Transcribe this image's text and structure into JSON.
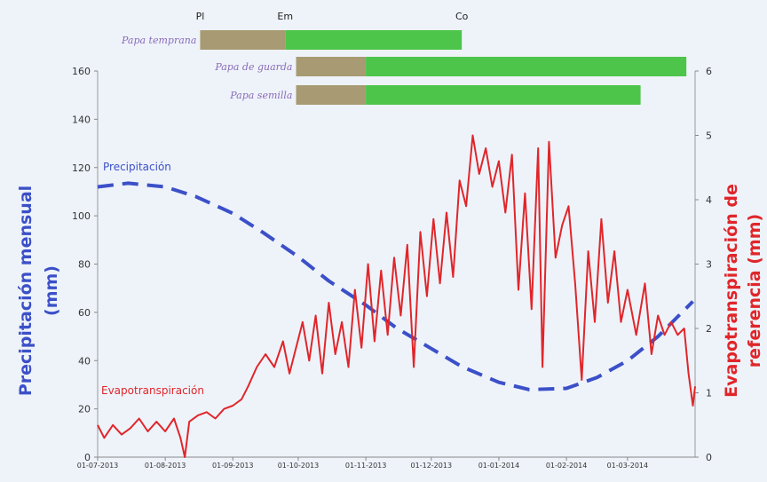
{
  "chart_data": {
    "type": "line",
    "x_ticks": [
      "01-07-2013",
      "01-08-2013",
      "01-09-2013",
      "01-10-2013",
      "01-11-2013",
      "01-12-2013",
      "01-01-2014",
      "01-02-2014",
      "01-03-2014"
    ],
    "y_left": {
      "label": "Precipitación mensual (mm)",
      "ticks": [
        "0",
        "20",
        "40",
        "60",
        "80",
        "100",
        "120",
        "140",
        "160"
      ],
      "range": [
        0,
        160
      ]
    },
    "y_right": {
      "label": "Evapotranspiración de referencia (mm)",
      "ticks": [
        "0",
        "1",
        "2",
        "3",
        "4",
        "5",
        "6"
      ],
      "range": [
        0,
        6
      ]
    },
    "crop_stages": [
      "Pl",
      "Em",
      "Co"
    ],
    "crops": [
      {
        "name": "Papa temprana",
        "planting": "2013-08-17",
        "emergence": "2013-09-25",
        "end": "2013-12-15"
      },
      {
        "name": "Papa de guarda",
        "planting": "2013-09-30",
        "emergence": "2013-11-01",
        "end": "2014-03-28"
      },
      {
        "name": "Papa semilla",
        "planting": "2013-09-30",
        "emergence": "2013-11-01",
        "end": "2014-03-07"
      }
    ],
    "series": [
      {
        "name": "Precipitación",
        "axis": "left",
        "style": "dashed",
        "color": "#3b50c8",
        "points": [
          [
            "2013-07-01",
            112
          ],
          [
            "2013-07-15",
            113.5
          ],
          [
            "2013-08-01",
            112
          ],
          [
            "2013-08-15",
            108
          ],
          [
            "2013-09-01",
            101
          ],
          [
            "2013-09-15",
            93
          ],
          [
            "2013-10-01",
            83
          ],
          [
            "2013-10-15",
            73
          ],
          [
            "2013-11-01",
            63
          ],
          [
            "2013-11-15",
            53.5
          ],
          [
            "2013-12-01",
            45
          ],
          [
            "2013-12-15",
            37.5
          ],
          [
            "2014-01-01",
            31
          ],
          [
            "2014-01-15",
            28
          ],
          [
            "2014-02-01",
            28.5
          ],
          [
            "2014-02-15",
            33
          ],
          [
            "2014-03-01",
            40
          ],
          [
            "2014-03-15",
            50
          ],
          [
            "2014-03-31",
            64.5
          ]
        ]
      },
      {
        "name": "Evapotranspiración",
        "axis": "right",
        "style": "solid",
        "color": "#e0262a",
        "points": [
          [
            "2013-07-01",
            0.5
          ],
          [
            "2013-07-04",
            0.3
          ],
          [
            "2013-07-08",
            0.5
          ],
          [
            "2013-07-12",
            0.35
          ],
          [
            "2013-07-16",
            0.45
          ],
          [
            "2013-07-20",
            0.6
          ],
          [
            "2013-07-24",
            0.4
          ],
          [
            "2013-07-28",
            0.55
          ],
          [
            "2013-08-01",
            0.4
          ],
          [
            "2013-08-05",
            0.6
          ],
          [
            "2013-08-08",
            0.3
          ],
          [
            "2013-08-10",
            0.0
          ],
          [
            "2013-08-12",
            0.55
          ],
          [
            "2013-08-16",
            0.65
          ],
          [
            "2013-08-20",
            0.7
          ],
          [
            "2013-08-24",
            0.6
          ],
          [
            "2013-08-28",
            0.75
          ],
          [
            "2013-09-01",
            0.8
          ],
          [
            "2013-09-05",
            0.9
          ],
          [
            "2013-09-08",
            1.1
          ],
          [
            "2013-09-12",
            1.4
          ],
          [
            "2013-09-16",
            1.6
          ],
          [
            "2013-09-20",
            1.4
          ],
          [
            "2013-09-24",
            1.8
          ],
          [
            "2013-09-27",
            1.3
          ],
          [
            "2013-09-30",
            1.7
          ],
          [
            "2013-10-03",
            2.1
          ],
          [
            "2013-10-06",
            1.5
          ],
          [
            "2013-10-09",
            2.2
          ],
          [
            "2013-10-12",
            1.3
          ],
          [
            "2013-10-15",
            2.4
          ],
          [
            "2013-10-18",
            1.6
          ],
          [
            "2013-10-21",
            2.1
          ],
          [
            "2013-10-24",
            1.4
          ],
          [
            "2013-10-27",
            2.6
          ],
          [
            "2013-10-30",
            1.7
          ],
          [
            "2013-11-02",
            3.0
          ],
          [
            "2013-11-05",
            1.8
          ],
          [
            "2013-11-08",
            2.9
          ],
          [
            "2013-11-11",
            1.9
          ],
          [
            "2013-11-14",
            3.1
          ],
          [
            "2013-11-17",
            2.2
          ],
          [
            "2013-11-20",
            3.3
          ],
          [
            "2013-11-23",
            1.4
          ],
          [
            "2013-11-26",
            3.5
          ],
          [
            "2013-11-29",
            2.5
          ],
          [
            "2013-12-02",
            3.7
          ],
          [
            "2013-12-05",
            2.7
          ],
          [
            "2013-12-08",
            3.8
          ],
          [
            "2013-12-11",
            2.8
          ],
          [
            "2013-12-14",
            4.3
          ],
          [
            "2013-12-17",
            3.9
          ],
          [
            "2013-12-20",
            5.0
          ],
          [
            "2013-12-23",
            4.4
          ],
          [
            "2013-12-26",
            4.8
          ],
          [
            "2013-12-29",
            4.2
          ],
          [
            "2014-01-01",
            4.6
          ],
          [
            "2014-01-04",
            3.8
          ],
          [
            "2014-01-07",
            4.7
          ],
          [
            "2014-01-10",
            2.6
          ],
          [
            "2014-01-13",
            4.1
          ],
          [
            "2014-01-16",
            2.3
          ],
          [
            "2014-01-19",
            4.8
          ],
          [
            "2014-01-21",
            1.4
          ],
          [
            "2014-01-24",
            4.9
          ],
          [
            "2014-01-27",
            3.1
          ],
          [
            "2014-01-30",
            3.6
          ],
          [
            "2014-02-02",
            3.9
          ],
          [
            "2014-02-05",
            2.7
          ],
          [
            "2014-02-08",
            1.2
          ],
          [
            "2014-02-11",
            3.2
          ],
          [
            "2014-02-14",
            2.1
          ],
          [
            "2014-02-17",
            3.7
          ],
          [
            "2014-02-20",
            2.4
          ],
          [
            "2014-02-23",
            3.2
          ],
          [
            "2014-02-26",
            2.1
          ],
          [
            "2014-03-01",
            2.6
          ],
          [
            "2014-03-05",
            1.9
          ],
          [
            "2014-03-09",
            2.7
          ],
          [
            "2014-03-12",
            1.6
          ],
          [
            "2014-03-15",
            2.2
          ],
          [
            "2014-03-18",
            1.9
          ],
          [
            "2014-03-21",
            2.1
          ],
          [
            "2014-03-24",
            1.9
          ],
          [
            "2014-03-27",
            2.0
          ],
          [
            "2014-03-29",
            1.3
          ],
          [
            "2014-03-31",
            0.8
          ],
          [
            "2014-04-01",
            1.1
          ]
        ]
      }
    ]
  }
}
